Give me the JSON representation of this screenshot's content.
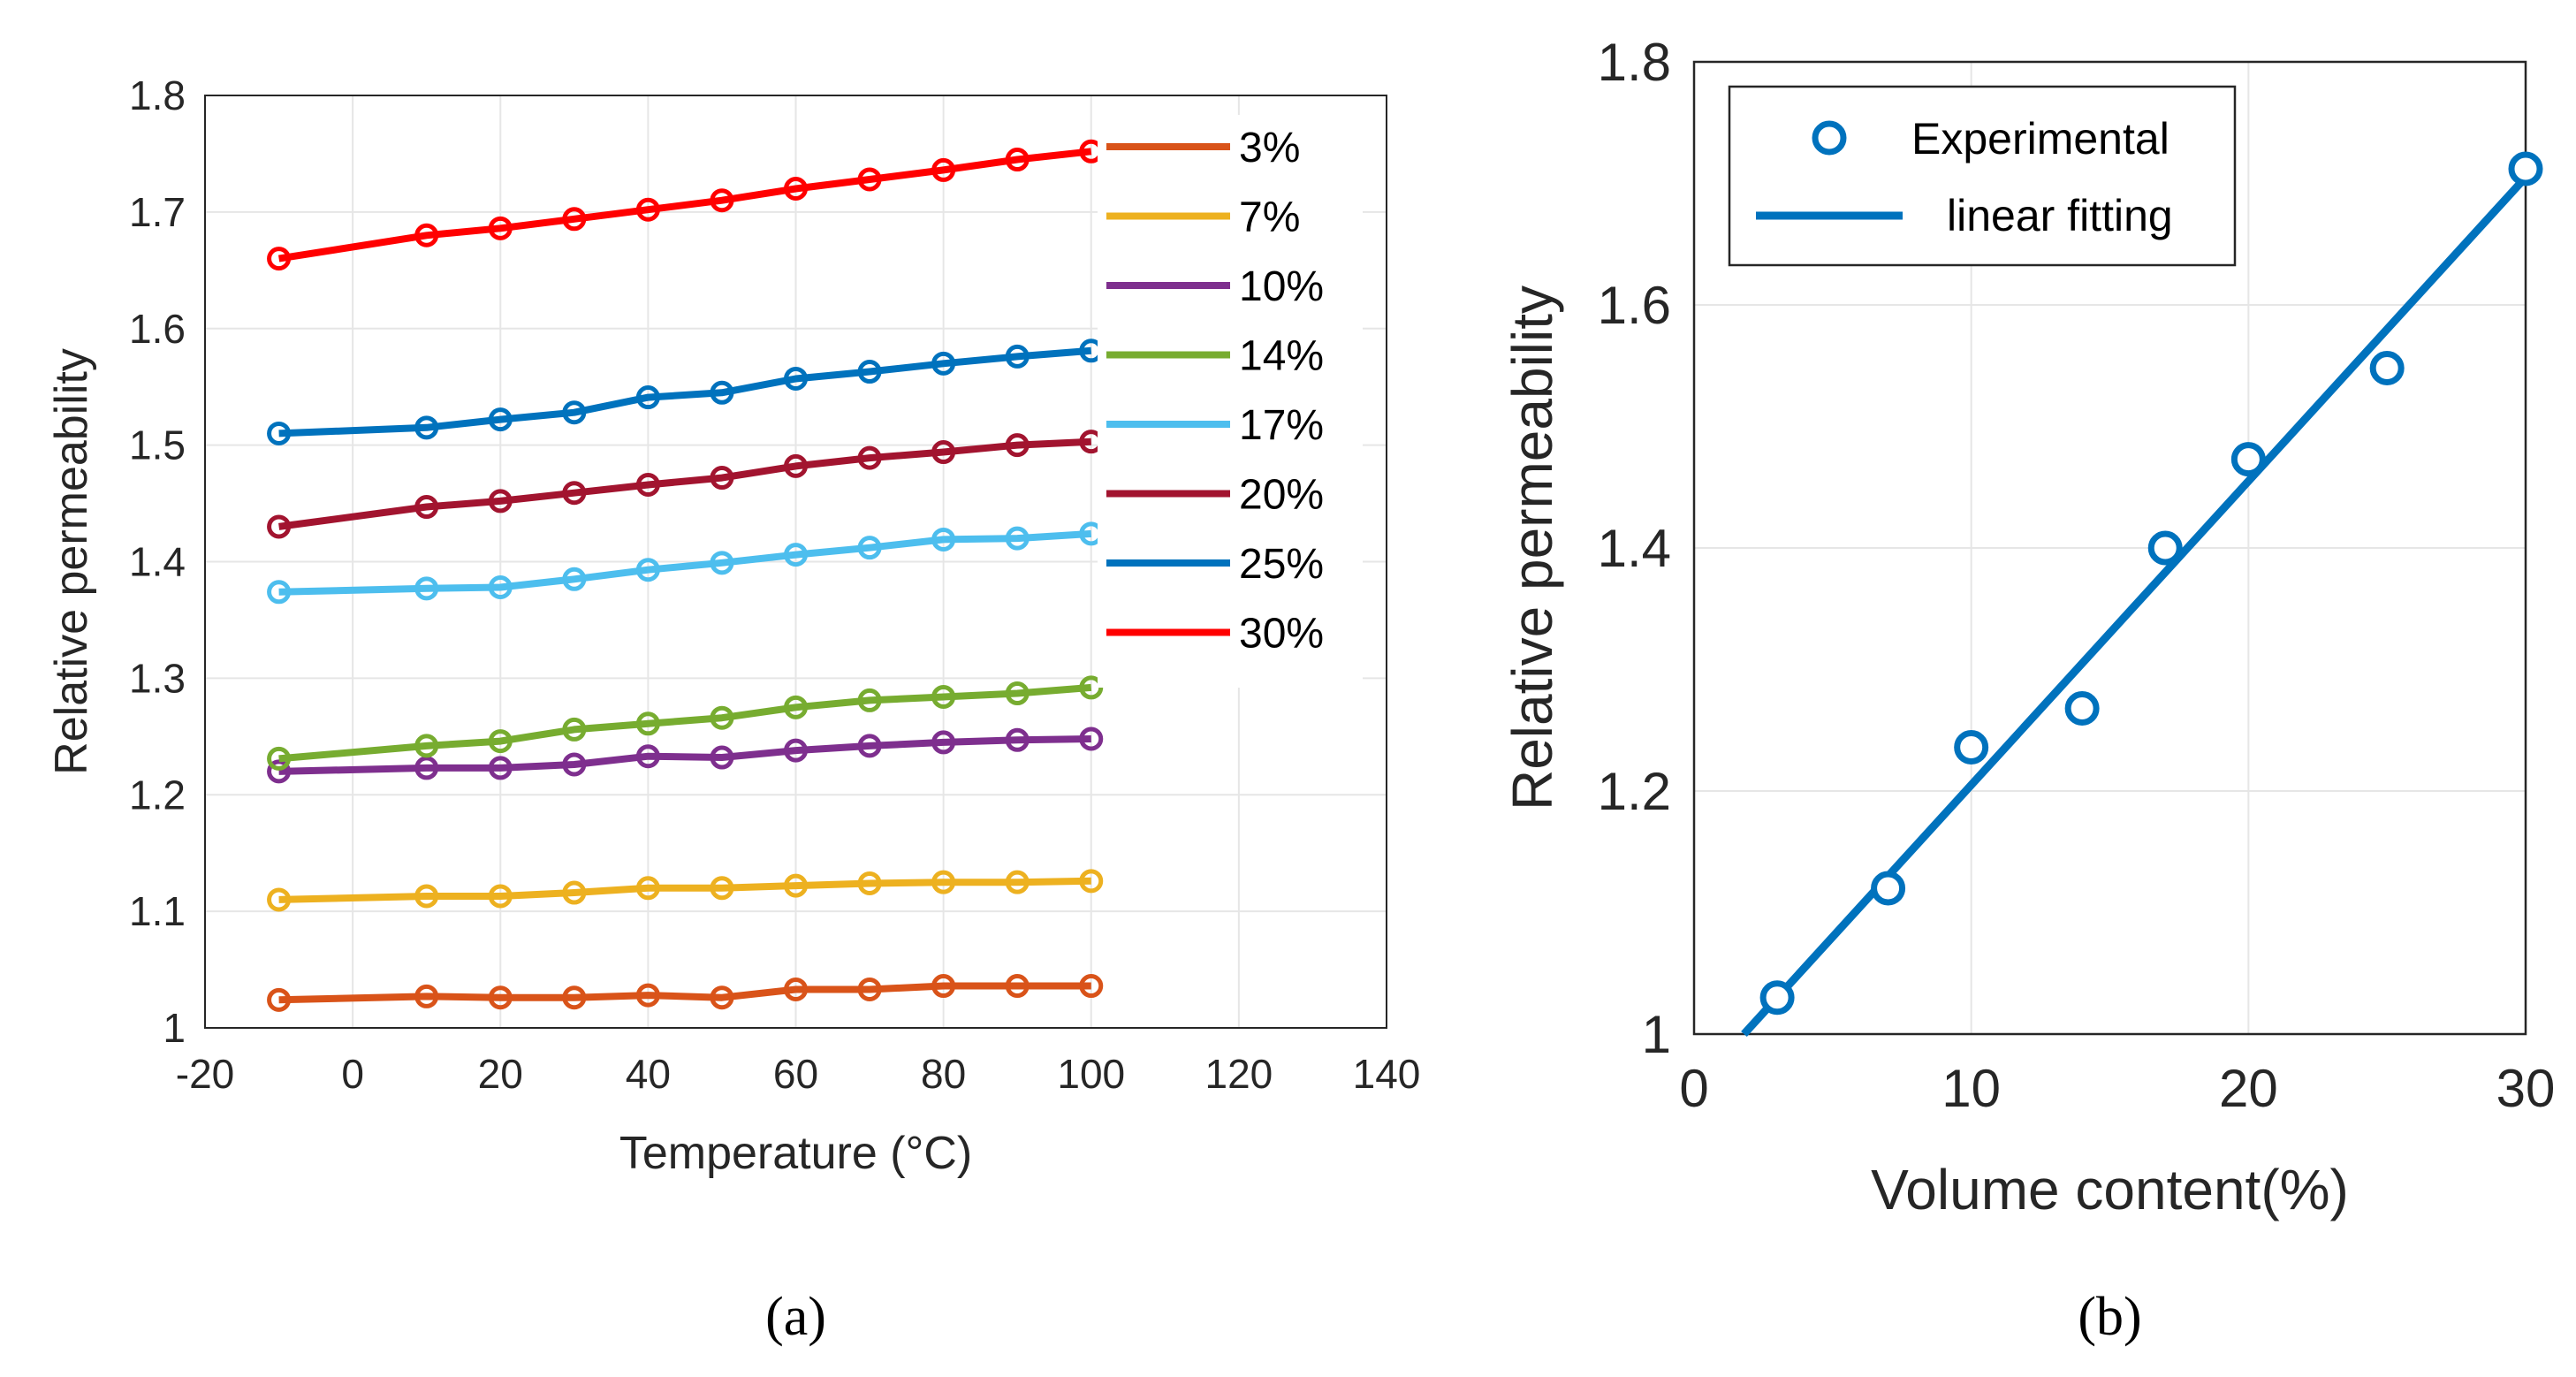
{
  "chart_data": [
    {
      "type": "line",
      "panel_label": "(a)",
      "xlabel": "Temperature (°C)",
      "ylabel": "Relative permeability",
      "xlim": [
        -20,
        140
      ],
      "ylim": [
        1.0,
        1.8
      ],
      "xticks": [
        -20,
        0,
        20,
        40,
        60,
        80,
        100,
        120,
        140
      ],
      "yticks": [
        1.0,
        1.1,
        1.2,
        1.3,
        1.4,
        1.5,
        1.6,
        1.7,
        1.8
      ],
      "xtick_labels": [
        "-20",
        "0",
        "20",
        "40",
        "60",
        "80",
        "100",
        "120",
        "140"
      ],
      "ytick_labels": [
        "1",
        "1.1",
        "1.2",
        "1.3",
        "1.4",
        "1.5",
        "1.6",
        "1.7",
        "1.8"
      ],
      "grid": true,
      "legend_position": "right",
      "x": [
        -10,
        10,
        20,
        30,
        40,
        50,
        60,
        70,
        80,
        90,
        100
      ],
      "series": [
        {
          "name": "3%",
          "color": "#d95319",
          "values": [
            1.024,
            1.027,
            1.026,
            1.026,
            1.028,
            1.026,
            1.033,
            1.033,
            1.036,
            1.036,
            1.036
          ]
        },
        {
          "name": "7%",
          "color": "#edb120",
          "values": [
            1.11,
            1.113,
            1.113,
            1.116,
            1.12,
            1.12,
            1.122,
            1.124,
            1.125,
            1.125,
            1.126
          ]
        },
        {
          "name": "10%",
          "color": "#7e2f8e",
          "values": [
            1.22,
            1.223,
            1.223,
            1.226,
            1.233,
            1.232,
            1.238,
            1.242,
            1.245,
            1.247,
            1.248
          ]
        },
        {
          "name": "14%",
          "color": "#77ac30",
          "values": [
            1.231,
            1.242,
            1.246,
            1.256,
            1.261,
            1.266,
            1.275,
            1.281,
            1.284,
            1.287,
            1.292
          ]
        },
        {
          "name": "17%",
          "color": "#4dbeee",
          "values": [
            1.374,
            1.377,
            1.378,
            1.385,
            1.393,
            1.399,
            1.406,
            1.412,
            1.419,
            1.42,
            1.424
          ]
        },
        {
          "name": "20%",
          "color": "#a2142f",
          "values": [
            1.43,
            1.447,
            1.452,
            1.459,
            1.466,
            1.472,
            1.482,
            1.489,
            1.494,
            1.5,
            1.503
          ]
        },
        {
          "name": "25%",
          "color": "#0072bd",
          "values": [
            1.51,
            1.515,
            1.522,
            1.528,
            1.541,
            1.545,
            1.557,
            1.563,
            1.57,
            1.576,
            1.581
          ]
        },
        {
          "name": "30%",
          "color": "#ff0000",
          "values": [
            1.66,
            1.68,
            1.686,
            1.694,
            1.702,
            1.71,
            1.72,
            1.728,
            1.736,
            1.745,
            1.752
          ]
        }
      ]
    },
    {
      "type": "scatter",
      "panel_label": "(b)",
      "xlabel": "Volume content(%)",
      "ylabel": "Relative permeability",
      "xlim": [
        0,
        30
      ],
      "ylim": [
        1.0,
        1.8
      ],
      "xticks": [
        0,
        10,
        20,
        30
      ],
      "yticks": [
        1.0,
        1.2,
        1.4,
        1.6,
        1.8
      ],
      "xtick_labels": [
        "0",
        "10",
        "20",
        "30"
      ],
      "ytick_labels": [
        "1",
        "1.2",
        "1.4",
        "1.6",
        "1.8"
      ],
      "grid": true,
      "legend_position": "top-left",
      "series": [
        {
          "name": "Experimental",
          "kind": "markers",
          "color": "#0072bd",
          "x": [
            3,
            7,
            10,
            14,
            17,
            20,
            25,
            30
          ],
          "y": [
            1.03,
            1.12,
            1.236,
            1.268,
            1.4,
            1.473,
            1.548,
            1.712
          ]
        },
        {
          "name": "linear fitting",
          "kind": "line",
          "color": "#0072bd",
          "x": [
            1.8,
            30
          ],
          "y": [
            1.0,
            1.705
          ]
        }
      ]
    }
  ]
}
